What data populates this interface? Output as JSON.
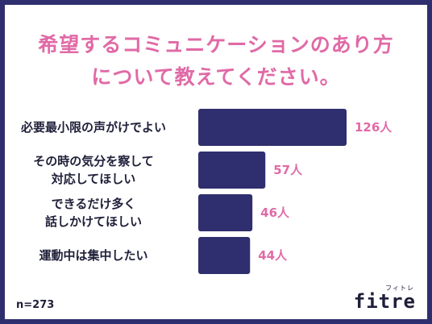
{
  "title_lines": [
    "希望するコミュニケーションのあり方",
    "について教えてください。"
  ],
  "note": "n=273",
  "logo": {
    "main": "fitre",
    "sub": "フィトレ"
  },
  "colors": {
    "bar": "#2f2e6e",
    "accent": "#e06aa6",
    "frame": "#2f2e6e"
  },
  "chart_data": {
    "type": "bar",
    "orientation": "horizontal",
    "categories": [
      [
        "必要最小限の声がけでよい"
      ],
      [
        "その時の気分を察して",
        "対応してほしい"
      ],
      [
        "できるだけ多く",
        "話しかけてほしい"
      ],
      [
        "運動中は集中したい"
      ]
    ],
    "values": [
      126,
      57,
      46,
      44
    ],
    "value_labels": [
      "126人",
      "57人",
      "46人",
      "44人"
    ],
    "title": "希望するコミュニケーションのあり方について教えてください。",
    "grid": false,
    "legend": "none"
  }
}
